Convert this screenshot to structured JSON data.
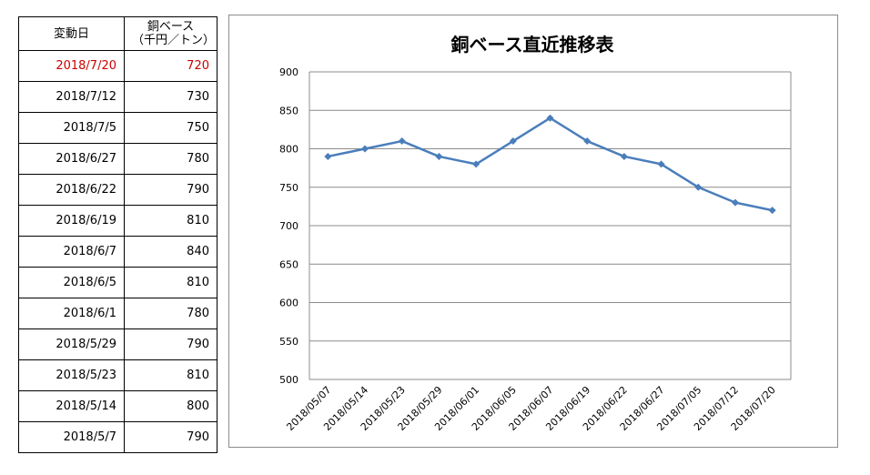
{
  "table": {
    "headers": {
      "date": "変動日",
      "price_line1": "銅ベース",
      "price_line2": "（千円／トン）"
    },
    "rows": [
      {
        "date": "2018/7/20",
        "value": "720"
      },
      {
        "date": "2018/7/12",
        "value": "730"
      },
      {
        "date": "2018/7/5",
        "value": "750"
      },
      {
        "date": "2018/6/27",
        "value": "780"
      },
      {
        "date": "2018/6/22",
        "value": "790"
      },
      {
        "date": "2018/6/19",
        "value": "810"
      },
      {
        "date": "2018/6/7",
        "value": "840"
      },
      {
        "date": "2018/6/5",
        "value": "810"
      },
      {
        "date": "2018/6/1",
        "value": "780"
      },
      {
        "date": "2018/5/29",
        "value": "790"
      },
      {
        "date": "2018/5/23",
        "value": "810"
      },
      {
        "date": "2018/5/14",
        "value": "800"
      },
      {
        "date": "2018/5/7",
        "value": "790"
      }
    ],
    "highlight_color": "#cc0000"
  },
  "chart_data": {
    "type": "line",
    "title": "銅ベース直近推移表",
    "categories": [
      "2018/05/07",
      "2018/05/14",
      "2018/05/23",
      "2018/05/29",
      "2018/06/01",
      "2018/06/05",
      "2018/06/07",
      "2018/06/19",
      "2018/06/22",
      "2018/06/27",
      "2018/07/05",
      "2018/07/12",
      "2018/07/20"
    ],
    "series": [
      {
        "values": [
          790,
          800,
          810,
          790,
          780,
          810,
          840,
          810,
          790,
          780,
          750,
          730,
          720
        ]
      }
    ],
    "ylim": [
      500,
      900
    ],
    "yticks": [
      500,
      550,
      600,
      650,
      700,
      750,
      800,
      850,
      900
    ],
    "grid": true,
    "legend": "none",
    "line_color": "#4a7ebb"
  }
}
